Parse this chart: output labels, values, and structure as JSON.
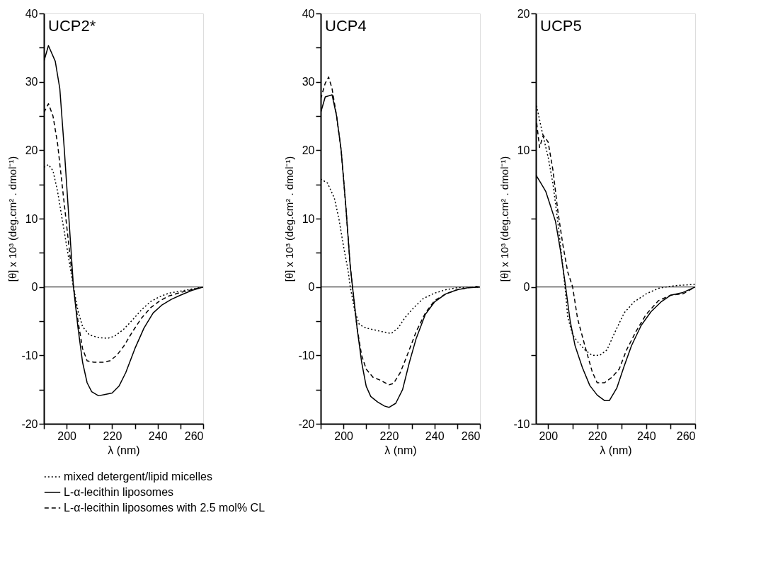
{
  "chart_data": [
    {
      "type": "line",
      "title": "UCP2*",
      "xlabel": "λ (nm)",
      "ylabel": "[θ] x 10³ (deg.cm² . dmol⁻¹)",
      "xlim": [
        190,
        260
      ],
      "xticks": [
        {
          "value": 190,
          "label": null
        },
        200,
        {
          "value": 210,
          "label": null
        },
        220,
        {
          "value": 230,
          "label": null
        },
        240,
        {
          "value": 250,
          "label": null
        },
        260
      ],
      "ylim": [
        -20,
        40
      ],
      "yticks": [
        -20,
        {
          "value": -15,
          "label": null
        },
        -10,
        {
          "value": -5,
          "label": null
        },
        0,
        {
          "value": 5,
          "label": null
        },
        10,
        {
          "value": 15,
          "label": null
        },
        20,
        {
          "value": 25,
          "label": null
        },
        30,
        {
          "value": 35,
          "label": null
        },
        40
      ],
      "grid": false,
      "legend": "bottom",
      "ref_lines": [
        {
          "axis": "y",
          "value": 0,
          "color": "#000000",
          "line_style": "solid"
        }
      ],
      "series": [
        {
          "name": "mixed detergent/lipid micelles",
          "color": "#000000",
          "line_style": "dotted",
          "x": [
            190,
            192,
            194,
            196,
            198,
            200,
            203,
            205,
            207,
            210,
            214,
            218,
            221,
            225,
            229,
            233,
            237,
            241,
            245,
            250,
            255,
            260
          ],
          "values": [
            17.5,
            17.9,
            17,
            14,
            10,
            6,
            0,
            -3.5,
            -5.8,
            -7,
            -7.4,
            -7.5,
            -7.2,
            -6.2,
            -4.8,
            -3.3,
            -2.1,
            -1.4,
            -0.9,
            -0.6,
            -0.3,
            0
          ]
        },
        {
          "name": "L-α-lecithin liposomes",
          "color": "#000000",
          "line_style": "solid",
          "x": [
            190,
            192,
            195,
            197,
            199,
            201,
            203,
            205,
            207,
            209,
            211,
            214,
            217,
            220,
            223,
            226,
            230,
            234,
            238,
            242,
            246,
            250,
            255,
            260
          ],
          "values": [
            33,
            35.3,
            33,
            29,
            20,
            10,
            0,
            -6,
            -11,
            -14,
            -15.3,
            -15.9,
            -15.7,
            -15.5,
            -14.5,
            -12.5,
            -9,
            -6,
            -3.8,
            -2.6,
            -1.8,
            -1.2,
            -0.5,
            0
          ]
        },
        {
          "name": "L-α-lecithin liposomes with 2.5 mol% CL",
          "color": "#000000",
          "line_style": "dashed",
          "x": [
            190,
            192,
            194,
            196,
            198,
            200,
            202,
            203,
            205,
            207,
            209,
            212,
            216,
            219,
            222,
            225,
            229,
            233,
            237,
            241,
            245,
            250,
            255,
            260
          ],
          "values": [
            25.5,
            26.8,
            25,
            21,
            15,
            9,
            3,
            0,
            -5,
            -9,
            -10.8,
            -11,
            -11,
            -10.8,
            -10,
            -8.7,
            -6.5,
            -4.5,
            -3,
            -2,
            -1.3,
            -0.8,
            -0.4,
            0
          ]
        }
      ]
    },
    {
      "type": "line",
      "title": "UCP4",
      "xlabel": "λ (nm)",
      "ylabel": "[θ] x 10³ (deg.cm² . dmol⁻¹)",
      "xlim": [
        190,
        260
      ],
      "xticks": [
        {
          "value": 190,
          "label": null
        },
        200,
        {
          "value": 210,
          "label": null
        },
        220,
        {
          "value": 230,
          "label": null
        },
        240,
        {
          "value": 250,
          "label": null
        },
        260
      ],
      "ylim": [
        -20,
        40
      ],
      "yticks": [
        -20,
        {
          "value": -15,
          "label": null
        },
        -10,
        {
          "value": -5,
          "label": null
        },
        0,
        {
          "value": 5,
          "label": null
        },
        10,
        {
          "value": 15,
          "label": null
        },
        20,
        {
          "value": 25,
          "label": null
        },
        30,
        {
          "value": 35,
          "label": null
        },
        40
      ],
      "grid": false,
      "ref_lines": [
        {
          "axis": "y",
          "value": 0,
          "color": "#000000",
          "line_style": "solid"
        }
      ],
      "series": [
        {
          "color": "#000000",
          "line_style": "dotted",
          "x": [
            190,
            193,
            196,
            198,
            200,
            202,
            203,
            205,
            207,
            210,
            214,
            218,
            221,
            224,
            227,
            231,
            235,
            240,
            245,
            250,
            255,
            260
          ],
          "values": [
            15.8,
            15.2,
            13,
            10,
            6,
            2.5,
            0,
            -3.5,
            -5.5,
            -6,
            -6.3,
            -6.6,
            -6.8,
            -6,
            -4.5,
            -3,
            -1.7,
            -0.9,
            -0.4,
            -0.1,
            0,
            0
          ]
        },
        {
          "color": "#000000",
          "line_style": "solid",
          "x": [
            190,
            192,
            195,
            197,
            199,
            201,
            203,
            204,
            206,
            208,
            210,
            212,
            215,
            218,
            220,
            223,
            226,
            229,
            232,
            236,
            240,
            245,
            250,
            255,
            260
          ],
          "values": [
            25.5,
            27.8,
            28.1,
            25,
            20,
            12,
            3,
            0,
            -6,
            -11,
            -14.5,
            -16,
            -16.8,
            -17.4,
            -17.6,
            -17,
            -15,
            -11,
            -7.5,
            -4,
            -2.2,
            -1,
            -0.4,
            -0.1,
            0
          ]
        },
        {
          "color": "#000000",
          "line_style": "dashed",
          "x": [
            190,
            192,
            193.5,
            195,
            197,
            199,
            201,
            203,
            204,
            206,
            208,
            210,
            213,
            216,
            220,
            222,
            225,
            228,
            232,
            236,
            240,
            245,
            250,
            255,
            258,
            260
          ],
          "values": [
            27.5,
            29.8,
            30.7,
            29,
            25,
            20,
            12,
            3,
            0,
            -6,
            -10,
            -12,
            -13.2,
            -13.6,
            -14.3,
            -14.1,
            -12.5,
            -10,
            -6.5,
            -3.8,
            -2,
            -1,
            -0.4,
            -0.1,
            0.1,
            0
          ]
        }
      ]
    },
    {
      "type": "line",
      "title": "UCP5",
      "xlabel": "λ (nm)",
      "ylabel": "[θ] x 10³ (deg.cm² . dmol⁻¹)",
      "xlim": [
        195,
        260
      ],
      "xticks": [
        200,
        {
          "value": 210,
          "label": null
        },
        220,
        {
          "value": 230,
          "label": null
        },
        240,
        {
          "value": 250,
          "label": null
        },
        260
      ],
      "ylim": [
        -10,
        20
      ],
      "yticks": [
        -10,
        {
          "value": -5,
          "label": null
        },
        0,
        {
          "value": 5,
          "label": null
        },
        10,
        {
          "value": 15,
          "label": null
        },
        20
      ],
      "grid": false,
      "ref_lines": [
        {
          "axis": "y",
          "value": 0,
          "color": "#000000",
          "line_style": "solid"
        }
      ],
      "series": [
        {
          "color": "#000000",
          "line_style": "dotted",
          "x": [
            195,
            197,
            198,
            200,
            202,
            204,
            206,
            207,
            208,
            210,
            212,
            215,
            218,
            221,
            224,
            227,
            231,
            235,
            240,
            245,
            248,
            252,
            260
          ],
          "values": [
            13.5,
            11.8,
            11,
            9.5,
            7.5,
            4.7,
            1.5,
            -0.2,
            -2.2,
            -3.5,
            -4,
            -4.6,
            -5,
            -5,
            -4.6,
            -3.4,
            -1.9,
            -1.1,
            -0.5,
            -0.1,
            0,
            0.1,
            0.2
          ]
        },
        {
          "color": "#000000",
          "line_style": "solid",
          "x": [
            195,
            197,
            199,
            201,
            203,
            205,
            207,
            209,
            211,
            214,
            217,
            220,
            223,
            225,
            228,
            231,
            234,
            238,
            242,
            246,
            250,
            255,
            260
          ],
          "values": [
            8.2,
            7.6,
            7,
            5.9,
            4.8,
            2.7,
            0.2,
            -2.5,
            -4.3,
            -5.9,
            -7.2,
            -7.9,
            -8.3,
            -8.3,
            -7.4,
            -5.8,
            -4.3,
            -2.8,
            -1.8,
            -1.1,
            -0.6,
            -0.4,
            0
          ]
        },
        {
          "color": "#000000",
          "line_style": "dashed",
          "x": [
            195,
            196.5,
            198,
            200,
            202,
            204,
            206,
            208,
            210,
            212,
            215,
            218,
            220,
            223,
            226,
            229,
            232,
            236,
            240,
            245,
            250,
            255,
            260
          ],
          "values": [
            12.5,
            10.2,
            11.1,
            10.6,
            8.5,
            5.5,
            3.1,
            1.1,
            0,
            -2.3,
            -4.3,
            -6.2,
            -7,
            -7,
            -6.6,
            -6,
            -4.6,
            -3.2,
            -2,
            -1,
            -0.6,
            -0.5,
            0
          ]
        }
      ]
    }
  ]
}
